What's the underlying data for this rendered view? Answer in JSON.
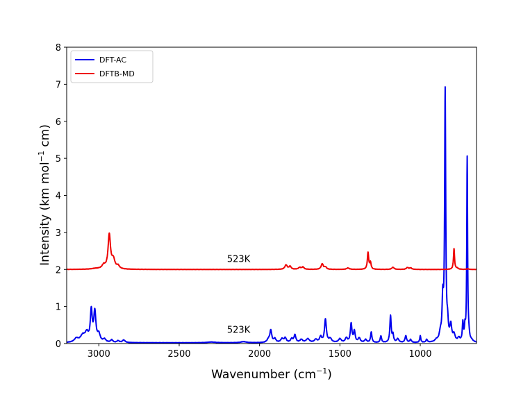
{
  "chart_data": {
    "type": "line",
    "xlabel": "Wavenumber (cm",
    "xlabel_sup": "−1",
    "xlabel_tail": ")",
    "ylabel": "Intensity (km mol",
    "ylabel_sup": "−1",
    "ylabel_tail": " cm)",
    "xlim": [
      3200,
      650
    ],
    "x_reversed": true,
    "ylim": [
      0,
      8
    ],
    "x_ticks": [
      3000,
      2500,
      2000,
      1500,
      1000
    ],
    "x_tick_labels": [
      "3000",
      "2500",
      "2000",
      "1500",
      "1000"
    ],
    "y_ticks": [
      0,
      1,
      2,
      3,
      4,
      5,
      6,
      7,
      8
    ],
    "y_tick_labels": [
      "0",
      "1",
      "2",
      "3",
      "4",
      "5",
      "6",
      "7",
      "8"
    ],
    "grid": false,
    "legend_position": "top-left",
    "annotations": [
      {
        "text": "523K",
        "x": 2130,
        "y": 2.2
      },
      {
        "text": "523K",
        "x": 2130,
        "y": 0.29
      }
    ],
    "series": [
      {
        "name": "DFT-AC",
        "color": "#0000ee",
        "baseline": 0.02,
        "peaks": [
          [
            3140,
            0.1,
            15
          ],
          [
            3100,
            0.18,
            18
          ],
          [
            3075,
            0.22,
            12
          ],
          [
            3047,
            0.82,
            7
          ],
          [
            3025,
            0.8,
            8
          ],
          [
            3000,
            0.2,
            10
          ],
          [
            2965,
            0.08,
            10
          ],
          [
            2920,
            0.07,
            8
          ],
          [
            2880,
            0.05,
            8
          ],
          [
            2845,
            0.07,
            10
          ],
          [
            2300,
            0.02,
            30
          ],
          [
            2100,
            0.03,
            20
          ],
          [
            1945,
            0.08,
            10
          ],
          [
            1930,
            0.32,
            7
          ],
          [
            1905,
            0.1,
            8
          ],
          [
            1860,
            0.1,
            10
          ],
          [
            1840,
            0.12,
            8
          ],
          [
            1800,
            0.1,
            8
          ],
          [
            1780,
            0.2,
            7
          ],
          [
            1740,
            0.08,
            10
          ],
          [
            1700,
            0.1,
            12
          ],
          [
            1650,
            0.08,
            10
          ],
          [
            1620,
            0.15,
            8
          ],
          [
            1590,
            0.62,
            7
          ],
          [
            1560,
            0.1,
            10
          ],
          [
            1500,
            0.1,
            10
          ],
          [
            1460,
            0.12,
            8
          ],
          [
            1430,
            0.5,
            6
          ],
          [
            1410,
            0.3,
            6
          ],
          [
            1380,
            0.12,
            8
          ],
          [
            1340,
            0.08,
            8
          ],
          [
            1305,
            0.28,
            5
          ],
          [
            1245,
            0.18,
            5
          ],
          [
            1185,
            0.72,
            5
          ],
          [
            1170,
            0.2,
            5
          ],
          [
            1140,
            0.1,
            8
          ],
          [
            1090,
            0.18,
            6
          ],
          [
            1060,
            0.08,
            6
          ],
          [
            1000,
            0.18,
            4
          ],
          [
            960,
            0.08,
            5
          ],
          [
            900,
            0.05,
            10
          ],
          [
            875,
            0.2,
            8
          ],
          [
            860,
            1.05,
            5
          ],
          [
            845,
            6.72,
            4
          ],
          [
            830,
            0.4,
            5
          ],
          [
            810,
            0.42,
            7
          ],
          [
            790,
            0.18,
            8
          ],
          [
            760,
            0.1,
            8
          ],
          [
            735,
            0.5,
            4
          ],
          [
            722,
            0.35,
            4
          ],
          [
            708,
            4.96,
            3
          ],
          [
            698,
            0.15,
            5
          ],
          [
            680,
            0.04,
            10
          ]
        ]
      },
      {
        "name": "DFTB-MD",
        "color": "#ee0000",
        "baseline": 2.0,
        "peaks": [
          [
            3020,
            0.02,
            30
          ],
          [
            2970,
            0.1,
            12
          ],
          [
            2935,
            0.92,
            9
          ],
          [
            2910,
            0.25,
            12
          ],
          [
            2880,
            0.08,
            10
          ],
          [
            1835,
            0.12,
            9
          ],
          [
            1810,
            0.08,
            8
          ],
          [
            1750,
            0.05,
            10
          ],
          [
            1730,
            0.06,
            8
          ],
          [
            1610,
            0.15,
            8
          ],
          [
            1590,
            0.06,
            8
          ],
          [
            1450,
            0.04,
            10
          ],
          [
            1325,
            0.45,
            5
          ],
          [
            1310,
            0.18,
            5
          ],
          [
            1170,
            0.06,
            8
          ],
          [
            1080,
            0.05,
            8
          ],
          [
            1060,
            0.04,
            8
          ],
          [
            790,
            0.56,
            4
          ],
          [
            770,
            0.03,
            8
          ],
          [
            705,
            0.02,
            6
          ]
        ]
      }
    ]
  }
}
